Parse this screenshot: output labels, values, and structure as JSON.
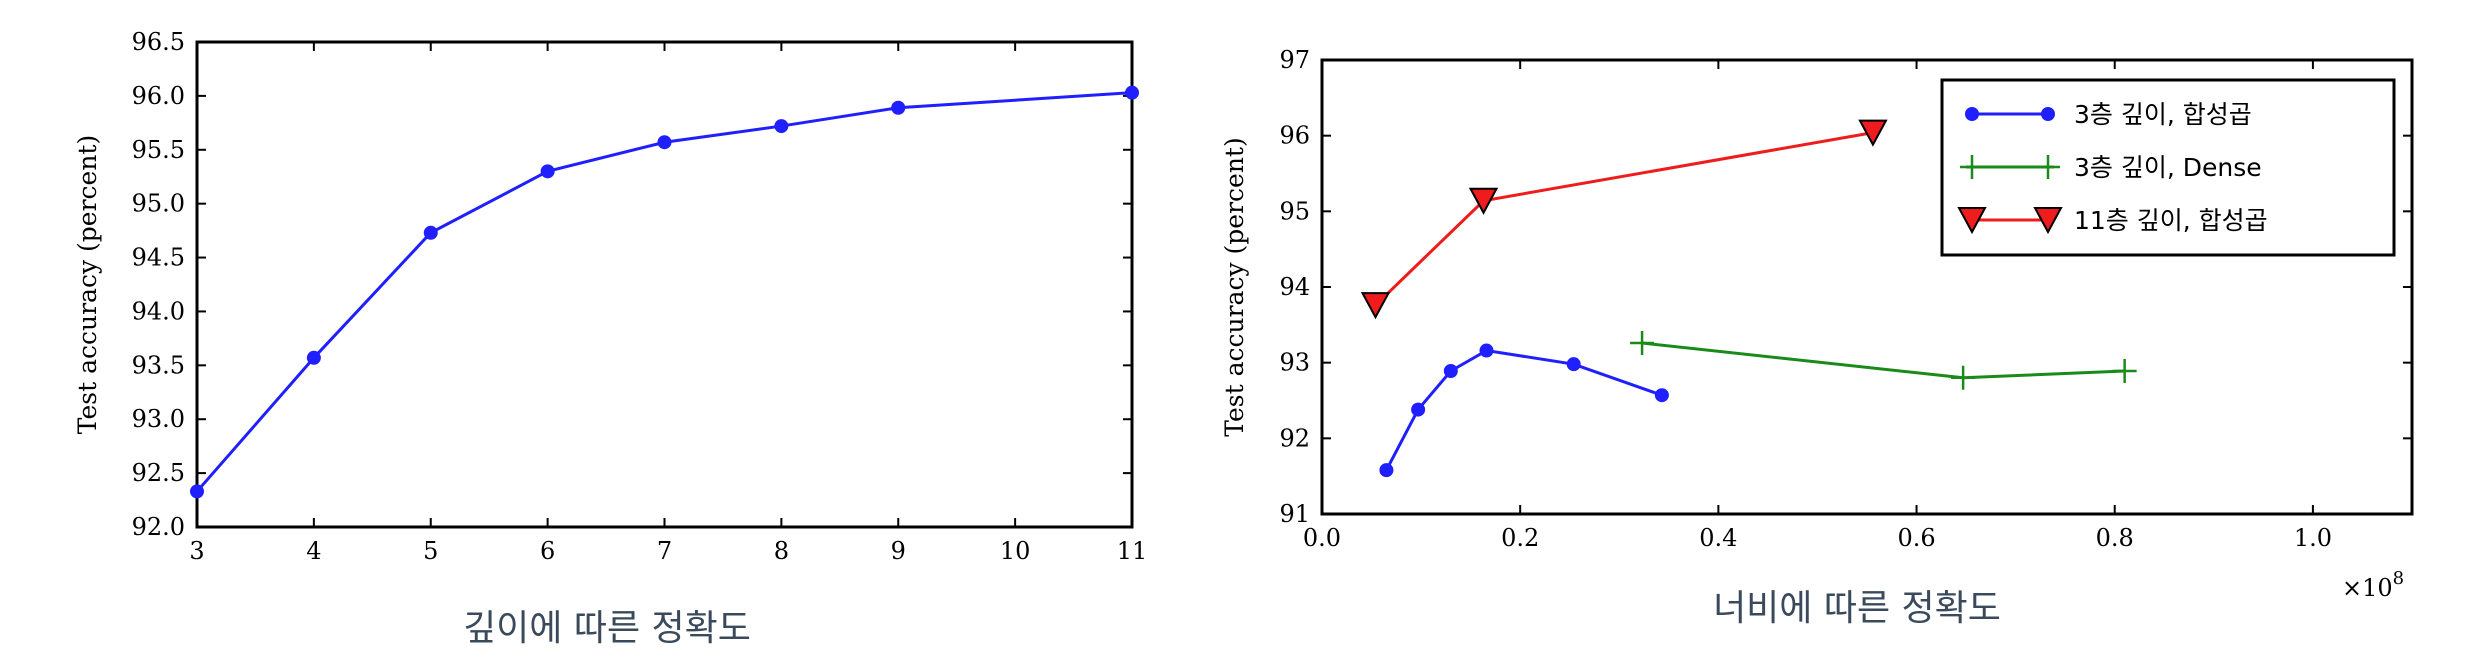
{
  "chart_data": [
    {
      "type": "line",
      "caption": "깊이에 따른 정확도",
      "ylabel": "Test accuracy (percent)",
      "xlim": [
        3,
        11
      ],
      "ylim": [
        92.0,
        96.5
      ],
      "xticks": [
        "3",
        "4",
        "5",
        "6",
        "7",
        "8",
        "9",
        "10",
        "11"
      ],
      "yticks": [
        "92.0",
        "92.5",
        "93.0",
        "93.5",
        "94.0",
        "94.5",
        "95.0",
        "95.5",
        "96.0",
        "96.5"
      ],
      "grid": false,
      "series": [
        {
          "color": "#1f1fff",
          "marker": "circle",
          "x": [
            3,
            4,
            5,
            6,
            7,
            8,
            9,
            11
          ],
          "y": [
            92.33,
            93.57,
            94.73,
            95.3,
            95.57,
            95.72,
            95.89,
            96.03
          ]
        }
      ]
    },
    {
      "type": "line",
      "caption": "너비에 따른 정확도",
      "ylabel": "Test accuracy (percent)",
      "xlim": [
        0.0,
        1.1
      ],
      "ylim": [
        91,
        97
      ],
      "xticks": [
        "0.0",
        "0.2",
        "0.4",
        "0.6",
        "0.8",
        "1.0"
      ],
      "xtick_values": [
        0.0,
        0.2,
        0.4,
        0.6,
        0.8,
        1.0
      ],
      "yticks": [
        "91",
        "92",
        "93",
        "94",
        "95",
        "96",
        "97"
      ],
      "x_multiplier": "×10",
      "x_multiplier_exp": "8",
      "grid": false,
      "legend": "top-right",
      "series": [
        {
          "name": "3층 깊이, 합성곱",
          "color": "#1f1fff",
          "marker": "circle",
          "x": [
            0.065,
            0.097,
            0.13,
            0.166,
            0.254,
            0.343
          ],
          "y": [
            91.58,
            92.38,
            92.89,
            93.16,
            92.98,
            92.57
          ]
        },
        {
          "name": "3층 깊이, Dense",
          "color": "#1a8a1a",
          "marker": "plus",
          "x": [
            0.323,
            0.647,
            0.81
          ],
          "y": [
            93.26,
            92.8,
            92.89
          ]
        },
        {
          "name": "11층 깊이, 합성곱",
          "color": "#ee1c1c",
          "marker": "triangle-down",
          "x": [
            0.054,
            0.163,
            0.556
          ],
          "y": [
            93.76,
            95.14,
            96.04
          ]
        }
      ]
    }
  ]
}
